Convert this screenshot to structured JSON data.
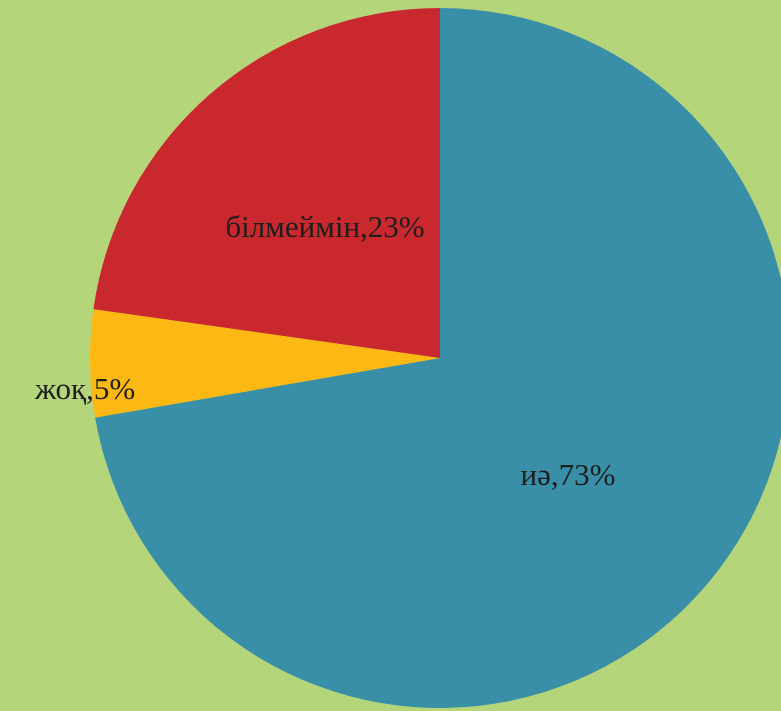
{
  "chart_data": {
    "type": "pie",
    "values": [
      73,
      5,
      23
    ],
    "value_labels": [
      "иә,73%",
      "жоқ,5%",
      "білмеймін,23%"
    ],
    "colors": [
      "#3a8fa8",
      "#fdb813",
      "#c8282e"
    ]
  }
}
